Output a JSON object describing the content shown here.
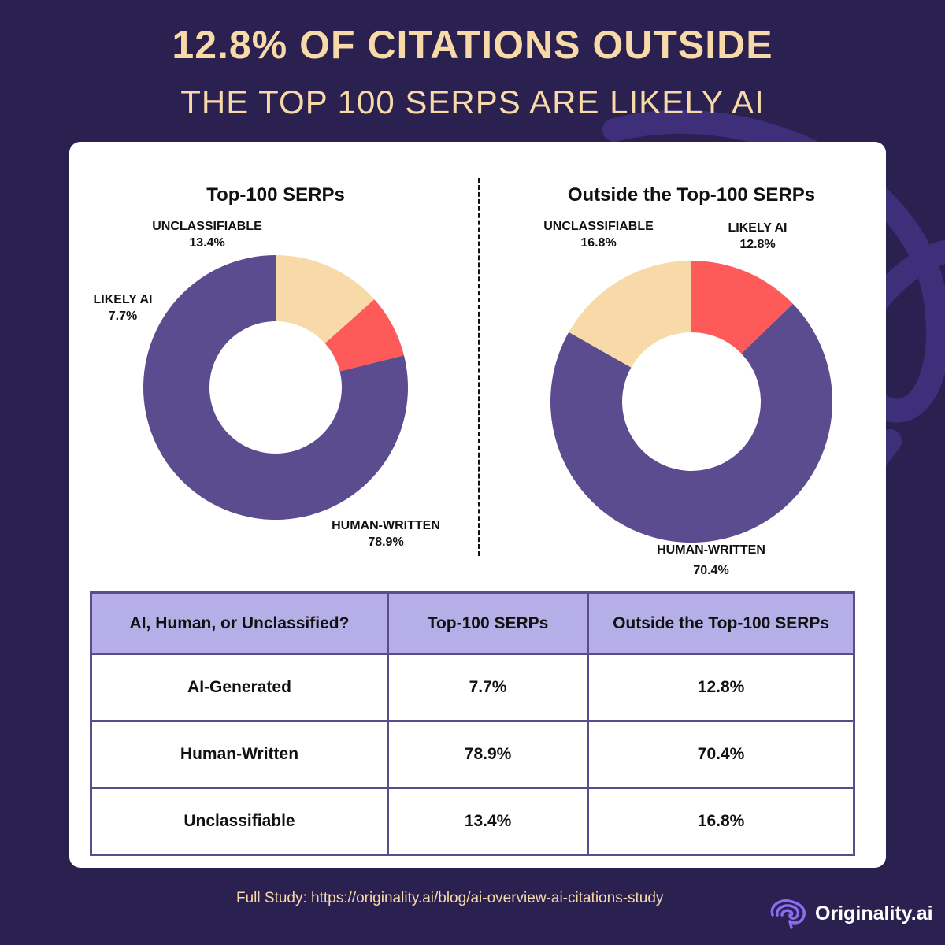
{
  "title_line1": "12.8% OF CITATIONS OUTSIDE",
  "title_line2": "THE TOP 100 SERPS ARE LIKELY AI",
  "colors": {
    "background": "#2b2150",
    "title": "#f8d9a8",
    "human": "#5a4c8e",
    "ai": "#ff5a5a",
    "unclassifiable": "#f8d9a8",
    "table_header": "#b6aee6",
    "table_border": "#5b4d8d"
  },
  "chart_data": [
    {
      "type": "pie",
      "title": "Top-100 SERPs",
      "slices": [
        {
          "key": "unclassifiable",
          "name": "UNCLASSIFIABLE",
          "value": 13.4,
          "label": "13.4%"
        },
        {
          "key": "ai",
          "name": "LIKELY AI",
          "value": 7.7,
          "label": "7.7%"
        },
        {
          "key": "human",
          "name": "HUMAN-WRITTEN",
          "value": 78.9,
          "label": "78.9%"
        }
      ]
    },
    {
      "type": "pie",
      "title": "Outside the Top-100 SERPs",
      "slices": [
        {
          "key": "ai",
          "name": "LIKELY AI",
          "value": 12.8,
          "label": "12.8%"
        },
        {
          "key": "human",
          "name": "HUMAN-WRITTEN",
          "value": 70.4,
          "label": "70.4%"
        },
        {
          "key": "unclassifiable",
          "name": "UNCLASSIFIABLE",
          "value": 16.8,
          "label": "16.8%"
        }
      ]
    }
  ],
  "table": {
    "headers": [
      "AI, Human, or Unclassified?",
      "Top-100 SERPs",
      "Outside the Top-100 SERPs"
    ],
    "rows": [
      [
        "AI-Generated",
        "7.7%",
        "12.8%"
      ],
      [
        "Human-Written",
        "78.9%",
        "70.4%"
      ],
      [
        "Unclassifiable",
        "13.4%",
        "16.8%"
      ]
    ]
  },
  "footer": "Full Study: https://originality.ai/blog/ai-overview-ai-citations-study",
  "logo": {
    "text": "Originality.ai",
    "icon": "brain-icon"
  }
}
